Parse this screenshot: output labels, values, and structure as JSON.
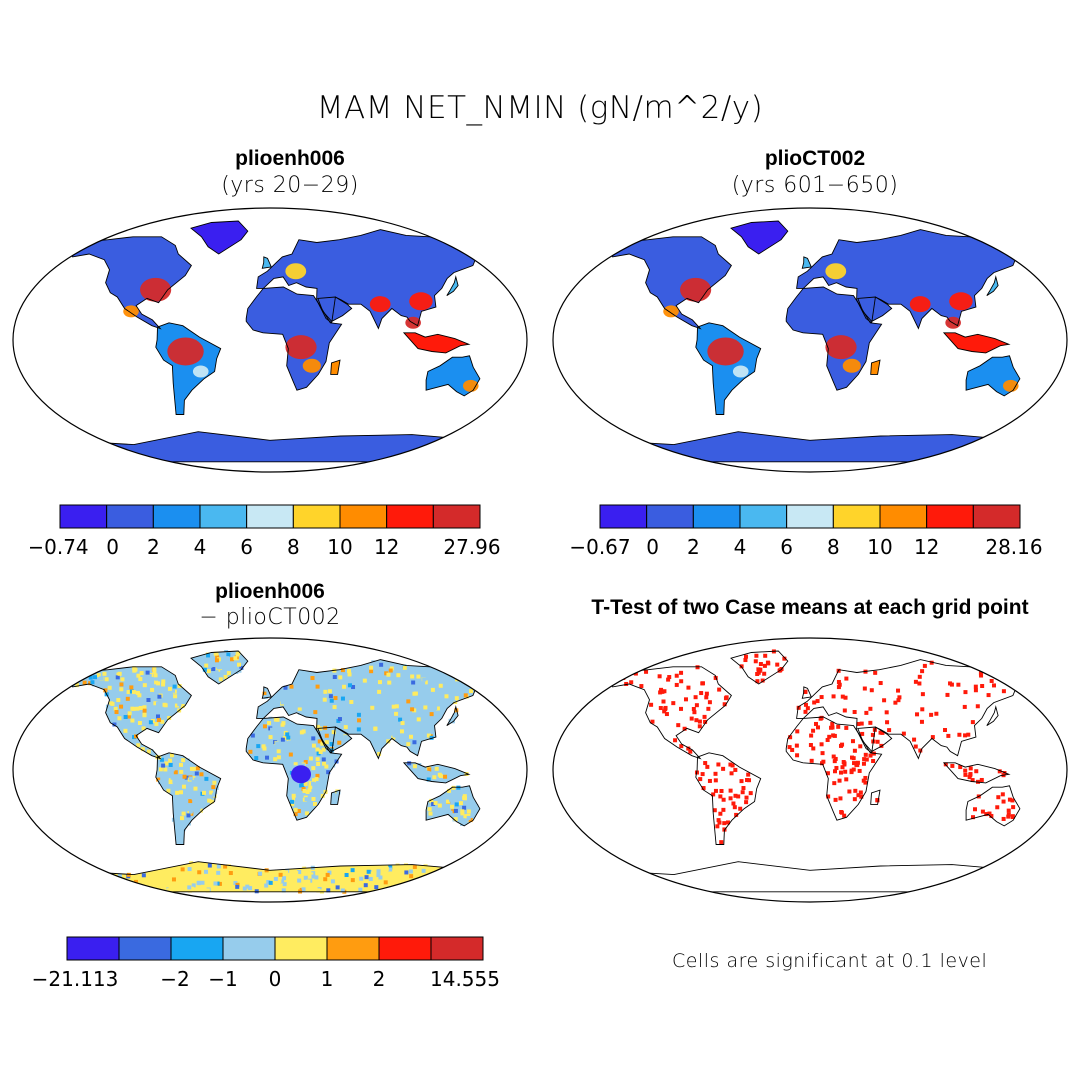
{
  "title": "MAM NET_NMIN (gN/m^2/y)",
  "panels": [
    {
      "name": "plioenh006",
      "subtitle": "(yrs 20−29)",
      "colorbar": {
        "colors": [
          "#3a1ff0",
          "#3a5de0",
          "#1b8ff0",
          "#4ab8f0",
          "#c8e8f4",
          "#ffd42a",
          "#ff8c00",
          "#ff1a0a",
          "#d42a2a"
        ],
        "labels": [
          "−0.74",
          "0",
          "2",
          "4",
          "6",
          "8",
          "10",
          "12",
          "27.96"
        ]
      }
    },
    {
      "name": "plioCT002",
      "subtitle": "(yrs 601−650)",
      "colorbar": {
        "colors": [
          "#3a1ff0",
          "#3a5de0",
          "#1b8ff0",
          "#4ab8f0",
          "#c8e8f4",
          "#ffd42a",
          "#ff8c00",
          "#ff1a0a",
          "#d42a2a"
        ],
        "labels": [
          "−0.67",
          "0",
          "2",
          "4",
          "6",
          "8",
          "10",
          "12",
          "28.16"
        ]
      }
    },
    {
      "name": "plioenh006",
      "subtitle": "− plioCT002",
      "colorbar": {
        "colors": [
          "#3a1ff0",
          "#3a6ae0",
          "#18a6f2",
          "#96ccec",
          "#ffec60",
          "#ff9c10",
          "#ff1a0a",
          "#d42a2a"
        ],
        "labels": [
          "−21.113",
          "−2",
          "−1",
          "0",
          "1",
          "2",
          "14.555"
        ]
      }
    },
    {
      "name": "T-Test of two Case means at each grid point",
      "subtitle": ""
    }
  ],
  "note": "Cells are significant at 0.1 level",
  "map_style": {
    "ocean": "#ffffff",
    "coast": "#000000",
    "significant": "#ff1a0a"
  },
  "icons": [
    "world-map-robinson"
  ]
}
